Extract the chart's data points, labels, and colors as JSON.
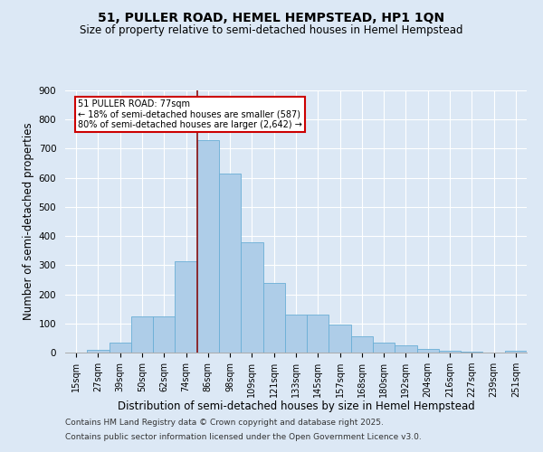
{
  "title": "51, PULLER ROAD, HEMEL HEMPSTEAD, HP1 1QN",
  "subtitle": "Size of property relative to semi-detached houses in Hemel Hempstead",
  "xlabel": "Distribution of semi-detached houses by size in Hemel Hempstead",
  "ylabel": "Number of semi-detached properties",
  "footnote1": "Contains HM Land Registry data © Crown copyright and database right 2025.",
  "footnote2": "Contains public sector information licensed under the Open Government Licence v3.0.",
  "bar_labels": [
    "15sqm",
    "27sqm",
    "39sqm",
    "50sqm",
    "62sqm",
    "74sqm",
    "86sqm",
    "98sqm",
    "109sqm",
    "121sqm",
    "133sqm",
    "145sqm",
    "157sqm",
    "168sqm",
    "180sqm",
    "192sqm",
    "204sqm",
    "216sqm",
    "227sqm",
    "239sqm",
    "251sqm"
  ],
  "bar_values": [
    0,
    10,
    35,
    125,
    125,
    315,
    730,
    615,
    380,
    240,
    130,
    130,
    95,
    55,
    35,
    25,
    12,
    7,
    3,
    0,
    7
  ],
  "bar_color": "#aecde8",
  "bar_edge_color": "#6aaed6",
  "vline_color": "#8b1010",
  "vline_x_index": 6,
  "annotation_title": "51 PULLER ROAD: 77sqm",
  "annotation_line1": "← 18% of semi-detached houses are smaller (587)",
  "annotation_line2": "80% of semi-detached houses are larger (2,642) →",
  "annotation_box_facecolor": "#ffffff",
  "annotation_box_edgecolor": "#cc0000",
  "ylim": [
    0,
    900
  ],
  "yticks": [
    0,
    100,
    200,
    300,
    400,
    500,
    600,
    700,
    800,
    900
  ],
  "background_color": "#dce8f5",
  "title_fontsize": 10,
  "subtitle_fontsize": 8.5,
  "tick_fontsize": 7,
  "xlabel_fontsize": 8.5,
  "ylabel_fontsize": 8.5,
  "footnote_fontsize": 6.5
}
